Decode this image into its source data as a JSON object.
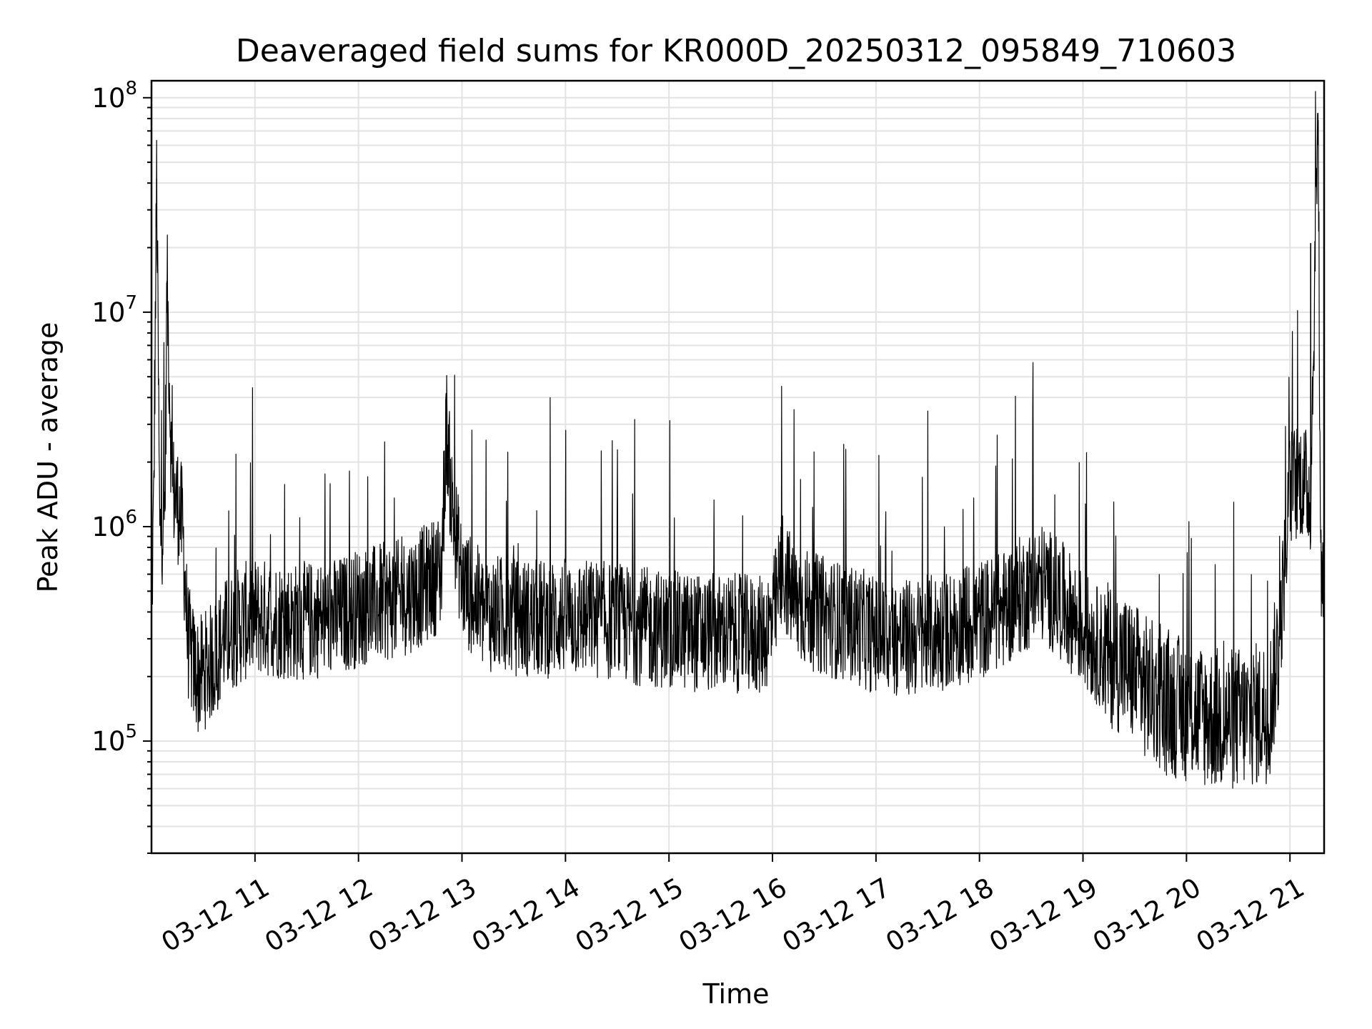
{
  "chart_data": {
    "type": "line",
    "title": "Deaveraged field sums for KR000D_20250312_095849_710603",
    "xlabel": "Time",
    "ylabel": "Peak ADU - average",
    "yscale": "log",
    "grid": true,
    "xlim": [
      "03-12 10:00",
      "03-12 21:20"
    ],
    "ylim": [
      30000,
      120000000
    ],
    "x_ticks": [
      "03-12 11",
      "03-12 12",
      "03-12 13",
      "03-12 14",
      "03-12 15",
      "03-12 16",
      "03-12 17",
      "03-12 18",
      "03-12 19",
      "03-12 20",
      "03-12 21"
    ],
    "x_tick_hours": [
      11,
      12,
      13,
      14,
      15,
      16,
      17,
      18,
      19,
      20,
      21
    ],
    "y_ticks": [
      {
        "value": 100000,
        "base": "10",
        "exp": "5"
      },
      {
        "value": 1000000,
        "base": "10",
        "exp": "6"
      },
      {
        "value": 10000000,
        "base": "10",
        "exp": "7"
      },
      {
        "value": 100000000,
        "base": "10",
        "exp": "8"
      }
    ],
    "series": [
      {
        "color": "#000000",
        "x_hours": [
          10.0,
          10.02,
          10.05,
          10.08,
          10.1,
          10.13,
          10.15,
          10.2,
          10.25,
          10.3,
          10.35,
          10.4,
          10.45,
          10.5,
          10.6,
          10.7,
          10.8,
          10.9,
          11.0,
          11.2,
          11.4,
          11.6,
          11.8,
          12.0,
          12.2,
          12.4,
          12.6,
          12.8,
          12.85,
          12.9,
          13.0,
          13.2,
          13.5,
          13.8,
          14.0,
          14.3,
          14.6,
          15.0,
          15.3,
          15.6,
          15.9,
          16.0,
          16.1,
          16.2,
          16.4,
          16.6,
          16.8,
          17.0,
          17.3,
          17.6,
          18.0,
          18.2,
          18.4,
          18.6,
          18.8,
          19.0,
          19.2,
          19.4,
          19.6,
          19.8,
          20.0,
          20.2,
          20.4,
          20.6,
          20.8,
          20.9,
          21.0,
          21.1,
          21.2,
          21.27,
          21.3
        ],
        "y_values": [
          400000,
          1100000,
          42000000,
          900000,
          1000000,
          1200000,
          14000000,
          1500000,
          1300000,
          1000000,
          300000,
          230000,
          200000,
          210000,
          240000,
          300000,
          330000,
          360000,
          380000,
          370000,
          360000,
          370000,
          380000,
          420000,
          440000,
          460000,
          520000,
          620000,
          3000000,
          1300000,
          550000,
          400000,
          380000,
          370000,
          380000,
          370000,
          350000,
          330000,
          320000,
          320000,
          310000,
          360000,
          650000,
          450000,
          400000,
          370000,
          350000,
          310000,
          300000,
          320000,
          370000,
          400000,
          480000,
          550000,
          450000,
          330000,
          260000,
          230000,
          180000,
          150000,
          140000,
          130000,
          125000,
          130000,
          140000,
          300000,
          1500000,
          1700000,
          1400000,
          85000000,
          600000
        ]
      }
    ]
  }
}
